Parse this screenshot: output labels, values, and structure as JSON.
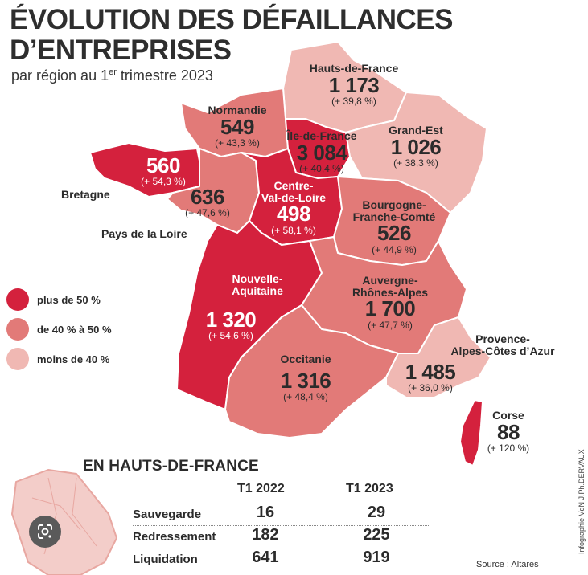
{
  "title_line1": "ÉVOLUTION DES DÉFAILLANCES",
  "title_line2": "D’ENTREPRISES",
  "subtitle_prefix": "par région au 1",
  "subtitle_sup": "er",
  "subtitle_suffix": " trimestre 2023",
  "colors": {
    "high": "#d4213d",
    "mid": "#e27a78",
    "low": "#f0b8b3",
    "outline": "#ffffff"
  },
  "legend": [
    {
      "label": "plus de 50 %",
      "color": "#d4213d"
    },
    {
      "label": "de 40 % à 50 %",
      "color": "#e27a78"
    },
    {
      "label": "moins de 40 %",
      "color": "#f0b8b3"
    }
  ],
  "regions": {
    "hauts_de_france": {
      "name": "Hauts-de-France",
      "value": "1 173",
      "pct": "(+ 39,8 %)"
    },
    "normandie": {
      "name": "Normandie",
      "value": "549",
      "pct": "(+ 43,3 %)"
    },
    "ile_de_france": {
      "name": "Île-de-France",
      "value": "3 084",
      "pct": "(+ 40,4 %)"
    },
    "grand_est": {
      "name": "Grand-Est",
      "value": "1 026",
      "pct": "(+ 38,3 %)"
    },
    "bretagne": {
      "name": "Bretagne",
      "value": "560",
      "pct": "(+ 54,3 %)"
    },
    "pays_de_la_loire": {
      "name": "Pays de la Loire",
      "value": "636",
      "pct": "(+ 47,6 %)"
    },
    "centre_val_de_loire": {
      "name_line1": "Centre-",
      "name_line2": "Val-de-Loire",
      "value": "498",
      "pct": "(+ 58,1 %)"
    },
    "bourgogne_franche_comte": {
      "name_line1": "Bourgogne-",
      "name_line2": "Franche-Comté",
      "value": "526",
      "pct": "(+ 44,9 %)"
    },
    "nouvelle_aquitaine": {
      "name_line1": "Nouvelle-",
      "name_line2": "Aquitaine",
      "value": "1 320",
      "pct": "(+ 54,6 %)"
    },
    "auvergne_rhone_alpes": {
      "name_line1": "Auvergne-",
      "name_line2": "Rhônes-Alpes",
      "value": "1 700",
      "pct": "(+ 47,7 %)"
    },
    "occitanie": {
      "name": "Occitanie",
      "value": "1 316",
      "pct": "(+ 48,4 %)"
    },
    "paca": {
      "name_line1": "Provence-",
      "name_line2": "Alpes-Côtes d’Azur",
      "value": "1 485",
      "pct": "(+ 36,0 %)"
    },
    "corse": {
      "name": "Corse",
      "value": "88",
      "pct": "(+ 120 %)"
    }
  },
  "hauts_de_france_table": {
    "title": "EN HAUTS-DE-FRANCE",
    "col1": "T1 2022",
    "col2": "T1 2023",
    "rows": [
      {
        "label": "Sauvegarde",
        "v2022": "16",
        "v2023": "29"
      },
      {
        "label": "Redressement",
        "v2022": "182",
        "v2023": "225"
      },
      {
        "label": "Liquidation",
        "v2022": "641",
        "v2023": "919"
      }
    ]
  },
  "source": "Source : Altares",
  "credit": "Infographie VdN J.Ph.DERVAUX",
  "lens_icon": "google-lens-icon"
}
